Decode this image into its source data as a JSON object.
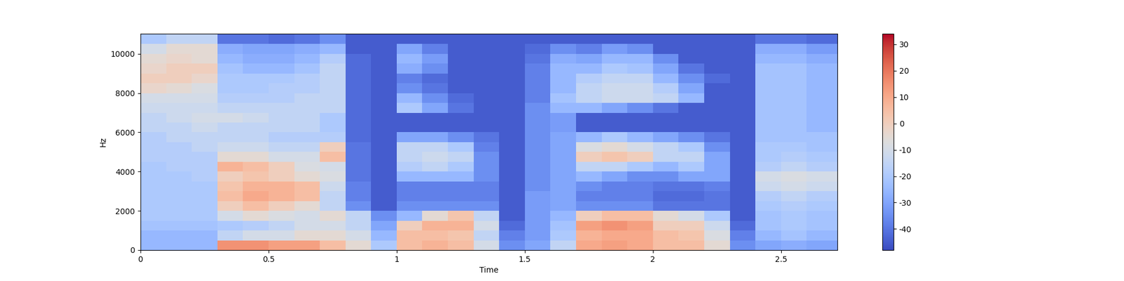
{
  "chart_data": {
    "type": "heatmap",
    "x_label": "Time",
    "y_label": "Hz",
    "x": [
      0,
      0.1,
      0.2,
      0.3,
      0.4,
      0.5,
      0.6,
      0.7,
      0.8,
      0.9,
      1.0,
      1.1,
      1.2,
      1.3,
      1.4,
      1.5,
      1.6,
      1.7,
      1.8,
      1.9,
      2.0,
      2.1,
      2.2,
      2.3,
      2.4,
      2.5,
      2.6,
      2.72
    ],
    "y": [
      0,
      500,
      1000,
      1500,
      2000,
      2500,
      3000,
      3500,
      4000,
      4500,
      5000,
      5500,
      6000,
      6500,
      7000,
      7500,
      8000,
      8500,
      9000,
      9500,
      10000,
      10500,
      11025
    ],
    "xlim": [
      0,
      2.72
    ],
    "xticks": [
      0,
      0.5,
      1,
      1.5,
      2,
      2.5
    ],
    "ylim": [
      0,
      11025
    ],
    "yticks": [
      0,
      2000,
      4000,
      6000,
      8000,
      10000
    ],
    "color": "coolwarm",
    "colorbar": {
      "range": [
        -48,
        34
      ],
      "ticks": [
        -40,
        -30,
        -20,
        -10,
        0,
        10,
        20,
        30
      ]
    },
    "cells": [
      [
        -25,
        -25,
        -25,
        15,
        15,
        12,
        12,
        5,
        -5,
        -20,
        5,
        8,
        5,
        -10,
        -35,
        -30,
        -15,
        10,
        12,
        10,
        5,
        5,
        -5,
        -35,
        -30,
        -28,
        -30
      ],
      [
        -25,
        -25,
        -25,
        -15,
        -10,
        -10,
        -5,
        -5,
        -10,
        -25,
        5,
        5,
        3,
        -15,
        -38,
        -32,
        -20,
        8,
        10,
        10,
        5,
        3,
        -8,
        -38,
        -25,
        -22,
        -25
      ],
      [
        -22,
        -22,
        -22,
        -20,
        -18,
        -15,
        -10,
        -10,
        -15,
        -30,
        0,
        8,
        8,
        -10,
        -42,
        -32,
        -22,
        12,
        15,
        12,
        0,
        0,
        -12,
        -42,
        -22,
        -20,
        -22
      ],
      [
        -20,
        -20,
        -20,
        -10,
        -5,
        -8,
        -10,
        -5,
        -15,
        -35,
        -25,
        -5,
        3,
        -15,
        -45,
        -32,
        -25,
        0,
        5,
        5,
        -5,
        -10,
        -20,
        -45,
        -22,
        -20,
        -22
      ],
      [
        -20,
        -20,
        -20,
        0,
        5,
        0,
        -5,
        -15,
        -35,
        -45,
        -35,
        -35,
        -35,
        -35,
        -45,
        -32,
        -30,
        -35,
        -35,
        -35,
        -40,
        -40,
        -40,
        -45,
        -20,
        -18,
        -20
      ],
      [
        -20,
        -20,
        -20,
        5,
        10,
        8,
        5,
        -15,
        -38,
        -45,
        -38,
        -38,
        -38,
        -38,
        -45,
        -32,
        -30,
        -38,
        -38,
        -38,
        -42,
        -42,
        -40,
        -45,
        -18,
        -15,
        -18
      ],
      [
        -20,
        -20,
        -20,
        3,
        8,
        8,
        5,
        -12,
        -38,
        -45,
        -38,
        -38,
        -38,
        -38,
        -45,
        -35,
        -30,
        -35,
        -38,
        -38,
        -40,
        -40,
        -38,
        -45,
        -12,
        -10,
        -12
      ],
      [
        -20,
        -20,
        -18,
        0,
        3,
        0,
        -5,
        -8,
        -40,
        -45,
        -25,
        -25,
        -25,
        -35,
        -45,
        -35,
        -30,
        -25,
        -30,
        -35,
        -35,
        -30,
        -30,
        -45,
        -10,
        -8,
        -10
      ],
      [
        -20,
        -18,
        -18,
        8,
        5,
        0,
        -8,
        -10,
        -40,
        -45,
        -18,
        -15,
        -20,
        -35,
        -45,
        -35,
        -30,
        -15,
        -15,
        -20,
        -25,
        -20,
        -30,
        -45,
        -18,
        -15,
        -18
      ],
      [
        -18,
        -18,
        -18,
        -5,
        -5,
        -10,
        -10,
        5,
        -40,
        -45,
        -15,
        -12,
        -15,
        -35,
        -45,
        -35,
        -30,
        0,
        3,
        0,
        -15,
        -15,
        -30,
        -45,
        -20,
        -18,
        -20
      ],
      [
        -18,
        -18,
        -15,
        -12,
        -12,
        -15,
        -15,
        0,
        -40,
        -45,
        -15,
        -15,
        -20,
        -38,
        -45,
        -35,
        -30,
        -8,
        -5,
        -10,
        -15,
        -20,
        -35,
        -45,
        -20,
        -20,
        -22
      ],
      [
        -18,
        -15,
        -15,
        -15,
        -15,
        -18,
        -18,
        -18,
        -42,
        -45,
        -30,
        -30,
        -35,
        -40,
        -45,
        -35,
        -30,
        -25,
        -20,
        -25,
        -30,
        -35,
        -40,
        -45,
        -22,
        -22,
        -22
      ],
      [
        -15,
        -15,
        -12,
        -15,
        -15,
        -15,
        -15,
        -20,
        -42,
        -45,
        -45,
        -45,
        -45,
        -45,
        -45,
        -35,
        -32,
        -45,
        -45,
        -45,
        -45,
        -45,
        -45,
        -45,
        -22,
        -22,
        -25
      ],
      [
        -15,
        -12,
        -10,
        -10,
        -12,
        -15,
        -15,
        -20,
        -42,
        -45,
        -45,
        -45,
        -45,
        -45,
        -45,
        -35,
        -32,
        -45,
        -45,
        -45,
        -45,
        -45,
        -45,
        -45,
        -22,
        -22,
        -25
      ],
      [
        -12,
        -12,
        -12,
        -15,
        -15,
        -15,
        -15,
        -15,
        -42,
        -45,
        -20,
        -30,
        -40,
        -45,
        -45,
        -35,
        -25,
        -25,
        -30,
        -35,
        -40,
        -45,
        -45,
        -45,
        -22,
        -22,
        -25
      ],
      [
        -10,
        -10,
        -10,
        -18,
        -18,
        -18,
        -15,
        -15,
        -42,
        -45,
        -25,
        -35,
        -42,
        -45,
        -45,
        -38,
        -22,
        -15,
        -12,
        -12,
        -15,
        -25,
        -45,
        -45,
        -22,
        -22,
        -25
      ],
      [
        -3,
        -5,
        -8,
        -20,
        -20,
        -18,
        -18,
        -15,
        -42,
        -45,
        -35,
        -40,
        -45,
        -45,
        -45,
        -38,
        -25,
        -15,
        -12,
        -12,
        -18,
        -30,
        -45,
        -45,
        -22,
        -22,
        -25
      ],
      [
        0,
        0,
        -3,
        -20,
        -20,
        -20,
        -18,
        -15,
        -42,
        -45,
        -38,
        -42,
        -45,
        -45,
        -45,
        -38,
        -25,
        -18,
        -15,
        -15,
        -25,
        -35,
        -42,
        -45,
        -22,
        -22,
        -25
      ],
      [
        -3,
        0,
        0,
        -22,
        -25,
        -25,
        -22,
        -15,
        -42,
        -45,
        -28,
        -35,
        -45,
        -45,
        -45,
        -38,
        -25,
        -25,
        -20,
        -22,
        -30,
        -40,
        -45,
        -45,
        -22,
        -22,
        -25
      ],
      [
        -5,
        -3,
        -5,
        -25,
        -28,
        -28,
        -25,
        -18,
        -42,
        -45,
        -25,
        -32,
        -45,
        -45,
        -45,
        -40,
        -28,
        -30,
        -25,
        -25,
        -35,
        -45,
        -45,
        -45,
        -25,
        -25,
        -28
      ],
      [
        -10,
        -5,
        -5,
        -28,
        -30,
        -30,
        -28,
        -25,
        -45,
        -45,
        -30,
        -38,
        -45,
        -45,
        -45,
        -42,
        -35,
        -38,
        -32,
        -35,
        -45,
        -45,
        -45,
        -45,
        -28,
        -28,
        -32
      ],
      [
        -20,
        -15,
        -15,
        -40,
        -40,
        -42,
        -40,
        -35,
        -45,
        -45,
        -45,
        -45,
        -45,
        -45,
        -45,
        -45,
        -45,
        -45,
        -45,
        -45,
        -45,
        -45,
        -45,
        -45,
        -40,
        -40,
        -42
      ]
    ]
  }
}
